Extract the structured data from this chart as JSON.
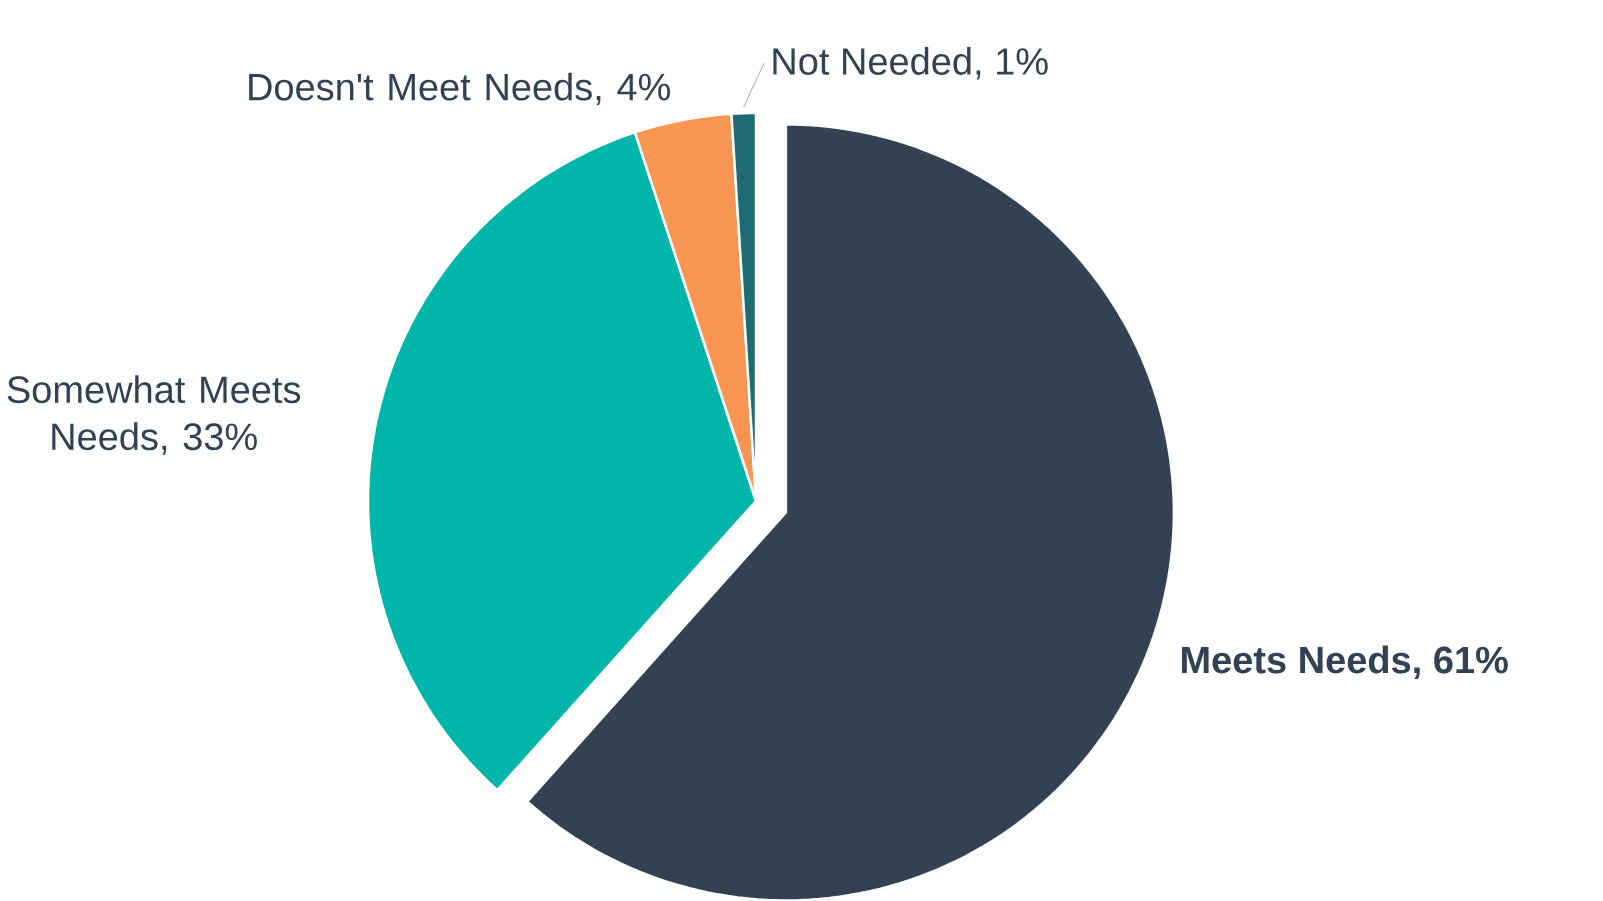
{
  "chart_data": {
    "type": "pie",
    "categories": [
      "Meets Needs, 61%",
      "Somewhat Meets Needs, 33%",
      "Doesn't Meet Needs, 4%",
      "Not Needed, 1%"
    ],
    "values": [
      61,
      33,
      4,
      1
    ],
    "colors": [
      "#334252",
      "#00b5aa",
      "#f79552",
      "#1f6b73"
    ]
  }
}
